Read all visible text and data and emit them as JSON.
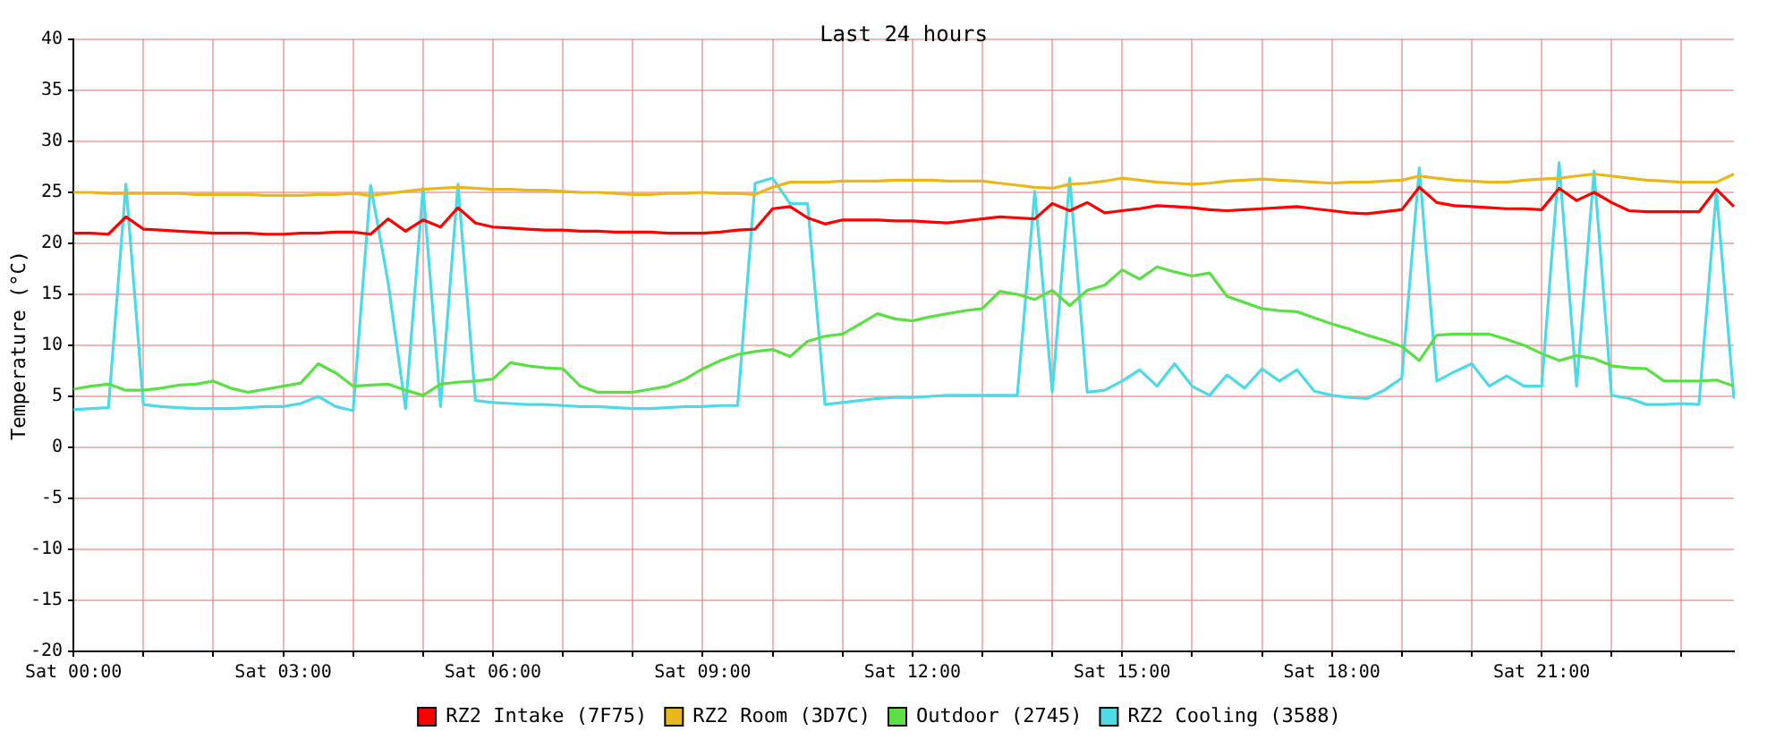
{
  "chart_data": {
    "type": "line",
    "title": "Last 24 hours",
    "ylabel": "Temperature (°C)",
    "categories": [
      "Sat 00:00",
      null,
      null,
      null,
      null,
      null,
      null,
      null,
      null,
      null,
      null,
      null,
      "Sat 03:00",
      null,
      null,
      null,
      null,
      null,
      null,
      null,
      null,
      null,
      null,
      null,
      "Sat 06:00",
      null,
      null,
      null,
      null,
      null,
      null,
      null,
      null,
      null,
      null,
      null,
      "Sat 09:00",
      null,
      null,
      null,
      null,
      null,
      null,
      null,
      null,
      null,
      null,
      null,
      "Sat 12:00",
      null,
      null,
      null,
      null,
      null,
      null,
      null,
      null,
      null,
      null,
      null,
      "Sat 15:00",
      null,
      null,
      null,
      null,
      null,
      null,
      null,
      null,
      null,
      null,
      null,
      "Sat 18:00",
      null,
      null,
      null,
      null,
      null,
      null,
      null,
      null,
      null,
      null,
      null,
      "Sat 21:00",
      null,
      null,
      null,
      null,
      null,
      null,
      null,
      null,
      null,
      null,
      null
    ],
    "ylim": [
      -20,
      40
    ],
    "yticks": [
      -20,
      -15,
      -10,
      -5,
      0,
      5,
      10,
      15,
      20,
      25,
      30,
      35,
      40
    ],
    "grid": true,
    "legend": "bottom",
    "marker": "none",
    "line_style": "solid",
    "series": [
      {
        "name": "RZ2 Intake (7F75)",
        "color": "#ff0000",
        "values": [
          21.0,
          21.0,
          20.9,
          22.6,
          21.4,
          21.3,
          21.2,
          21.1,
          21.0,
          21.0,
          21.0,
          20.9,
          20.9,
          21.0,
          21.0,
          21.1,
          21.1,
          20.9,
          22.4,
          21.2,
          22.3,
          21.6,
          23.5,
          22.0,
          21.6,
          21.5,
          21.4,
          21.3,
          21.3,
          21.2,
          21.2,
          21.1,
          21.1,
          21.1,
          21.0,
          21.0,
          21.0,
          21.1,
          21.3,
          21.4,
          23.4,
          23.6,
          22.5,
          21.9,
          22.3,
          22.3,
          22.3,
          22.2,
          22.2,
          22.1,
          22.0,
          22.2,
          22.4,
          22.6,
          22.5,
          22.4,
          23.9,
          23.2,
          24.0,
          23.0,
          23.2,
          23.4,
          23.7,
          23.6,
          23.5,
          23.3,
          23.2,
          23.3,
          23.4,
          23.5,
          23.6,
          23.4,
          23.2,
          23.0,
          22.9,
          23.1,
          23.3,
          25.5,
          24.0,
          23.7,
          23.6,
          23.5,
          23.4,
          23.4,
          23.3,
          25.4,
          24.2,
          25.0,
          24.0,
          23.2,
          23.1,
          23.1,
          23.1,
          23.1,
          25.3,
          23.6
        ]
      },
      {
        "name": "RZ2 Room (3D7C)",
        "color": "#e8b71a",
        "values": [
          25.0,
          25.0,
          24.9,
          24.9,
          24.9,
          24.9,
          24.9,
          24.8,
          24.8,
          24.8,
          24.8,
          24.7,
          24.7,
          24.7,
          24.8,
          24.8,
          24.9,
          24.7,
          24.9,
          25.1,
          25.3,
          25.4,
          25.5,
          25.4,
          25.3,
          25.3,
          25.2,
          25.2,
          25.1,
          25.0,
          25.0,
          24.9,
          24.8,
          24.8,
          24.9,
          24.9,
          25.0,
          24.9,
          24.9,
          24.8,
          25.5,
          26.0,
          26.0,
          26.0,
          26.1,
          26.1,
          26.1,
          26.2,
          26.2,
          26.2,
          26.1,
          26.1,
          26.1,
          25.9,
          25.7,
          25.5,
          25.4,
          25.8,
          25.9,
          26.1,
          26.4,
          26.2,
          26.0,
          25.9,
          25.8,
          25.9,
          26.1,
          26.2,
          26.3,
          26.2,
          26.1,
          26.0,
          25.9,
          26.0,
          26.0,
          26.1,
          26.2,
          26.6,
          26.4,
          26.2,
          26.1,
          26.0,
          26.0,
          26.2,
          26.3,
          26.4,
          26.6,
          26.8,
          26.6,
          26.4,
          26.2,
          26.1,
          26.0,
          26.0,
          26.0,
          26.8
        ]
      },
      {
        "name": "Outdoor (2745)",
        "color": "#5ae045",
        "values": [
          5.7,
          6.0,
          6.2,
          5.6,
          5.6,
          5.8,
          6.1,
          6.2,
          6.5,
          5.8,
          5.4,
          5.7,
          6.0,
          6.3,
          8.2,
          7.3,
          6.0,
          6.1,
          6.2,
          5.6,
          5.1,
          6.2,
          6.4,
          6.5,
          6.7,
          8.3,
          8.0,
          7.8,
          7.7,
          6.0,
          5.4,
          5.4,
          5.4,
          5.7,
          6.0,
          6.7,
          7.7,
          8.5,
          9.1,
          9.4,
          9.6,
          8.9,
          10.4,
          10.9,
          11.1,
          12.1,
          13.1,
          12.6,
          12.4,
          12.8,
          13.1,
          13.4,
          13.6,
          15.3,
          15.0,
          14.5,
          15.4,
          13.9,
          15.4,
          15.9,
          17.4,
          16.5,
          17.7,
          17.2,
          16.8,
          17.1,
          14.8,
          14.2,
          13.6,
          13.4,
          13.3,
          12.7,
          12.1,
          11.6,
          11.0,
          10.5,
          9.9,
          8.5,
          11.0,
          11.1,
          11.1,
          11.1,
          10.6,
          10.0,
          9.2,
          8.5,
          9.0,
          8.7,
          8.0,
          7.8,
          7.7,
          6.5,
          6.5,
          6.5,
          6.6,
          6.0
        ]
      },
      {
        "name": "RZ2 Cooling (3588)",
        "color": "#4dd9e6",
        "values": [
          3.7,
          3.8,
          3.9,
          25.8,
          4.2,
          4.0,
          3.9,
          3.8,
          3.8,
          3.8,
          3.9,
          4.0,
          4.0,
          4.3,
          5.0,
          4.0,
          3.6,
          25.7,
          16.2,
          3.8,
          25.4,
          4.0,
          25.8,
          4.6,
          4.4,
          4.3,
          4.2,
          4.2,
          4.1,
          4.0,
          4.0,
          3.9,
          3.8,
          3.8,
          3.9,
          4.0,
          4.0,
          4.1,
          4.1,
          25.9,
          26.4,
          23.9,
          23.9,
          4.2,
          4.4,
          4.6,
          4.8,
          4.9,
          4.9,
          5.0,
          5.1,
          5.1,
          5.1,
          5.1,
          5.1,
          25.1,
          5.4,
          26.4,
          5.4,
          5.6,
          6.5,
          7.6,
          6.0,
          8.2,
          6.0,
          5.1,
          7.1,
          5.8,
          7.7,
          6.5,
          7.6,
          5.5,
          5.1,
          4.9,
          4.8,
          5.6,
          6.8,
          27.4,
          6.5,
          7.4,
          8.2,
          6.0,
          7.0,
          6.0,
          6.0,
          27.9,
          6.0,
          27.1,
          5.1,
          4.8,
          4.2,
          4.2,
          4.3,
          4.2,
          25.1,
          4.8
        ]
      }
    ]
  }
}
